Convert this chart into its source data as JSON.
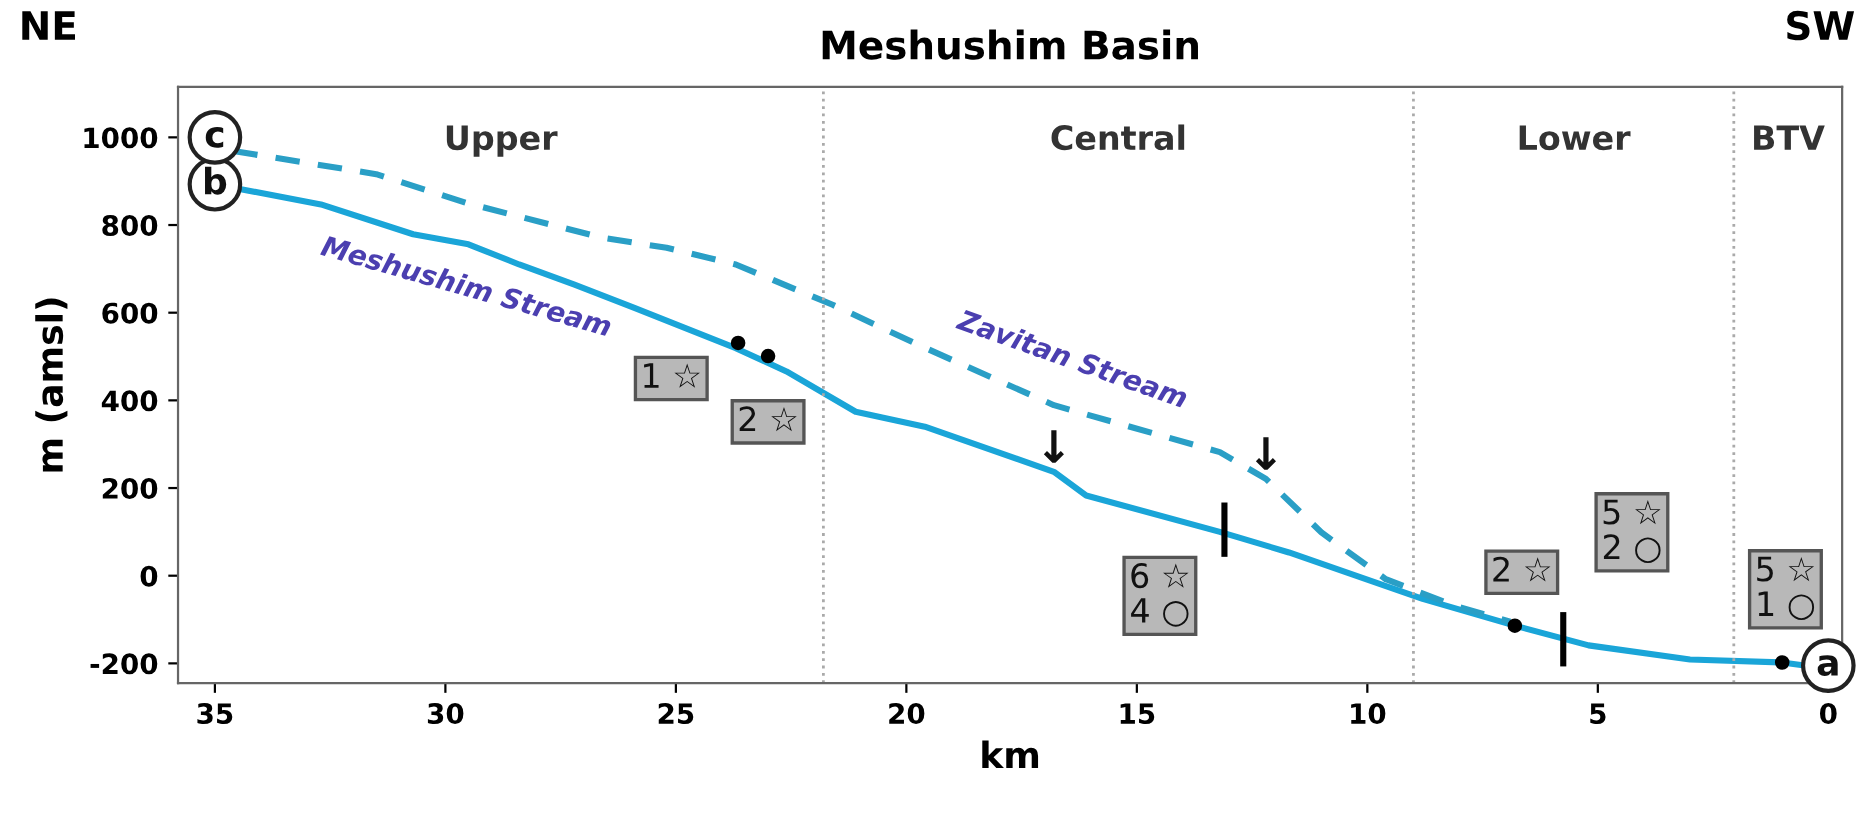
{
  "chart_data": {
    "type": "line",
    "title": "Meshushim Basin",
    "xlabel": "km",
    "ylabel": "m (amsl)",
    "xlim": [
      35.8,
      -0.3
    ],
    "xticks": [
      35,
      30,
      25,
      20,
      15,
      10,
      5,
      0
    ],
    "ylim": [
      -245,
      1115
    ],
    "yticks": [
      -200,
      0,
      200,
      400,
      600,
      800,
      1000
    ],
    "grid": false,
    "legend": false,
    "series": [
      {
        "name": "Meshushim Stream",
        "color": "#1aa5d8",
        "line_style": "solid",
        "x": [
          35,
          32.7,
          30.7,
          29.5,
          28.4,
          27.2,
          25.9,
          23.7,
          22.6,
          21.1,
          19.6,
          16.8,
          16.1,
          13.2,
          11.7,
          8.8,
          6.8,
          5.2,
          3.0,
          1.0,
          0.5
        ],
        "values": [
          893,
          847,
          779,
          756,
          710,
          664,
          611,
          519,
          466,
          374,
          340,
          237,
          183,
          100,
          53,
          -53,
          -114,
          -159,
          -191,
          -198,
          -205
        ]
      },
      {
        "name": "Zavitan Stream",
        "color": "#2a9fc6",
        "line_style": "dashed",
        "x": [
          34.6,
          31.5,
          29.5,
          26.6,
          25.2,
          23.7,
          21.6,
          19.6,
          16.8,
          13.2,
          12.2,
          11.0,
          9.6,
          8.1,
          6.9
        ],
        "values": [
          969,
          916,
          849,
          771,
          748,
          710,
          618,
          520,
          389,
          282,
          221,
          99,
          -8,
          -69,
          -105
        ]
      },
      {
        "type": "scatter",
        "color": "#000000",
        "marker": "circle",
        "x": [
          23.65,
          23.0,
          6.8,
          1.0
        ],
        "values": [
          531,
          501,
          -114,
          -198
        ]
      },
      {
        "color": "#000000",
        "line_style": "solid",
        "x": [
          13.1,
          13.1
        ],
        "values": [
          50,
          160
        ]
      },
      {
        "color": "#000000",
        "line_style": "solid",
        "x": [
          5.75,
          5.75
        ],
        "values": [
          -90,
          -200
        ]
      },
      {
        "type": "scatter",
        "color": "#ffffff",
        "marker": "circle",
        "x": [
          0,
          35,
          35
        ],
        "values": [
          -205,
          893,
          1000
        ],
        "value_labels": [
          "a",
          "b",
          "c"
        ]
      }
    ],
    "ref_lines": [
      {
        "axis": "x",
        "value": 21.8,
        "color": "#aaaaaa",
        "line_style": "dotted"
      },
      {
        "axis": "x",
        "value": 9.0,
        "color": "#aaaaaa",
        "line_style": "dotted"
      },
      {
        "axis": "x",
        "value": 2.05,
        "color": "#aaaaaa",
        "line_style": "dotted"
      }
    ],
    "annotations": [
      "NE",
      "SW",
      "Upper",
      "Central",
      "Lower",
      "BTV",
      {
        "text": "1 ☆",
        "x": 25.1,
        "y": 450
      },
      {
        "text": "2 ☆",
        "x": 23.0,
        "y": 351
      },
      {
        "text": "6 ☆\n4 ○",
        "x": 14.5,
        "y": -46
      },
      {
        "text": "2 ☆",
        "x": 6.65,
        "y": 8
      },
      {
        "text": "5 ☆\n2 ○",
        "x": 4.26,
        "y": 99
      },
      {
        "text": "5 ☆\n1 ○",
        "x": 0.93,
        "y": -31
      },
      {
        "text": "↓",
        "x": 16.8,
        "y": 237
      },
      {
        "text": "↓",
        "x": 12.2,
        "y": 221
      }
    ]
  }
}
